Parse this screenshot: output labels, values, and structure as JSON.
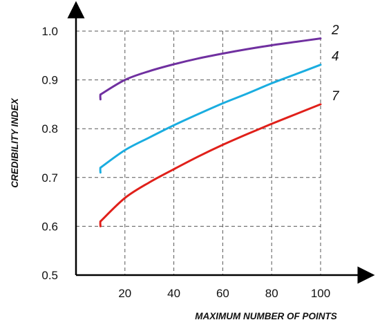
{
  "chart_data": {
    "type": "line",
    "title": "",
    "xlabel": "MAXIMUM NUMBER OF POINTS",
    "ylabel": "CREDIBILITY INDEX",
    "xlim": [
      0,
      100
    ],
    "ylim": [
      0.5,
      1.0
    ],
    "x_ticks": [
      20,
      40,
      60,
      80,
      100
    ],
    "x_tick_labels": [
      "20",
      "40",
      "60",
      "80",
      "100"
    ],
    "y_ticks": [
      0.5,
      0.6,
      0.7,
      0.8,
      0.9,
      1.0
    ],
    "y_tick_labels": [
      "0.5",
      "0.6",
      "0.7",
      "0.8",
      "0.9",
      "1.0"
    ],
    "grid": true,
    "grid_style": "dashed",
    "legend": "inline labels at right end of curves",
    "series": [
      {
        "name": "2",
        "color": "#7030A0",
        "x": [
          10,
          20,
          30,
          40,
          50,
          60,
          70,
          80,
          90,
          100
        ],
        "y": [
          0.87,
          0.9,
          0.918,
          0.932,
          0.944,
          0.954,
          0.963,
          0.971,
          0.978,
          0.985
        ]
      },
      {
        "name": "4",
        "color": "#1AADE0",
        "x": [
          10,
          20,
          30,
          40,
          50,
          60,
          70,
          80,
          90,
          100
        ],
        "y": [
          0.72,
          0.756,
          0.782,
          0.807,
          0.83,
          0.852,
          0.872,
          0.893,
          0.912,
          0.931
        ]
      },
      {
        "name": "7",
        "color": "#E0201A",
        "x": [
          10,
          20,
          30,
          40,
          50,
          60,
          70,
          80,
          90,
          100
        ],
        "y": [
          0.61,
          0.658,
          0.69,
          0.717,
          0.743,
          0.767,
          0.789,
          0.81,
          0.83,
          0.85
        ]
      }
    ]
  }
}
